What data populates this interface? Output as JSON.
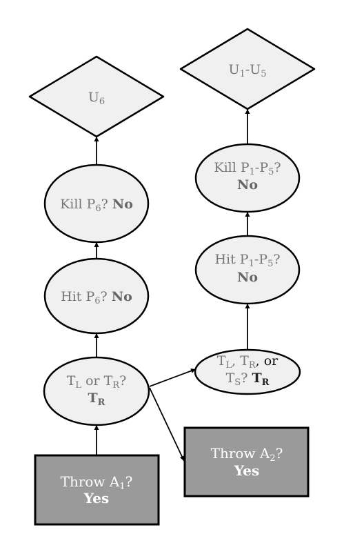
{
  "nodes": {
    "u6": {
      "main": "U",
      "sub": "6"
    },
    "u1u5": {
      "a": "U",
      "a_sub": "1",
      "mid": "-U",
      "b_sub": "5"
    },
    "kill_p6": {
      "pre": "Kill P",
      "sub": "6",
      "post": "? ",
      "answer": "No"
    },
    "hit_p6": {
      "pre": "Hit P",
      "sub": "6",
      "post": "? ",
      "answer": "No"
    },
    "tl_tr": {
      "t1": "T",
      "t1_sub": "L",
      "mid": " or T",
      "t2_sub": "R",
      "post": "?",
      "answer_main": "T",
      "answer_sub": "R"
    },
    "throw_a1": {
      "pre": "Throw A",
      "sub": "1",
      "post": "?",
      "answer": "Yes"
    },
    "kill_p1p5": {
      "pre": "Kill P",
      "s1": "1",
      "mid": "-P",
      "s2": "5",
      "post": "?",
      "answer": "No"
    },
    "hit_p1p5": {
      "pre": "Hit P",
      "s1": "1",
      "mid": "-P",
      "s2": "5",
      "post": "?",
      "answer": "No"
    },
    "tl_tr_ts": {
      "t1": "T",
      "t1_sub": "L",
      "sep1": ", T",
      "t2_sub": "R",
      "sep2": ", or",
      "t3": "T",
      "t3_sub": "S",
      "post": "? ",
      "answer_main": "T",
      "answer_sub": "R"
    },
    "throw_a2": {
      "pre": "Throw A",
      "sub": "2",
      "post": "?",
      "answer": "Yes"
    }
  },
  "colors": {
    "light_fill": "#f0f0f0",
    "dark_fill": "#9a9a9a",
    "stroke": "#000000",
    "gray_text": "#777777",
    "white_text": "#ffffff"
  }
}
